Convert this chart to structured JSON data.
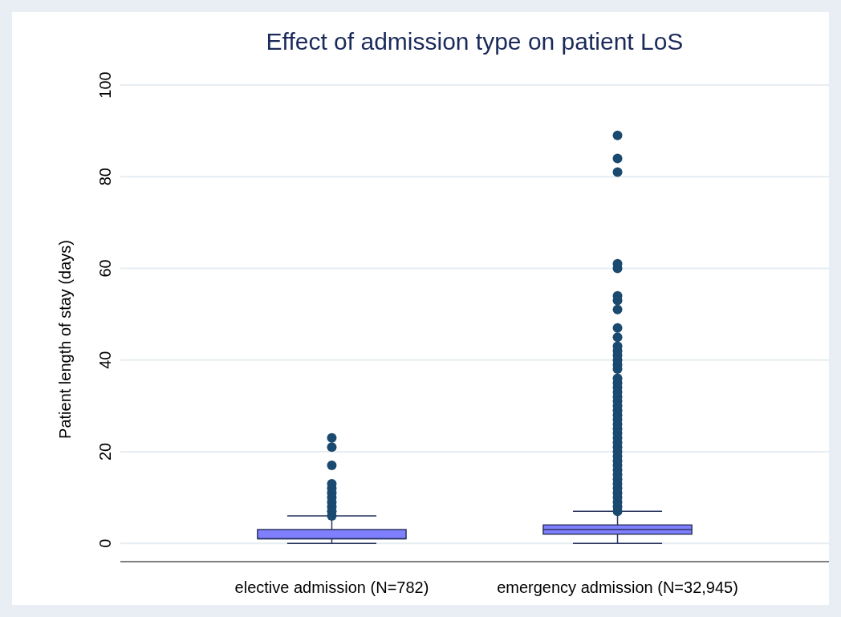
{
  "chart_data": {
    "type": "box",
    "title": "Effect of admission type on patient LoS",
    "ylabel": "Patient length of stay (days)",
    "categories": [
      "elective admission (N=782)",
      "emergency admission (N=32,945)"
    ],
    "ylim": [
      -4,
      100
    ],
    "yticks": [
      0,
      20,
      40,
      60,
      80,
      100
    ],
    "grid": "y",
    "series": [
      {
        "color": "#8080ff",
        "boxes": [
          {
            "low": 0,
            "q1": 1,
            "median": 1,
            "q3": 3,
            "high": 6,
            "outliers": [
              6,
              7,
              8,
              9,
              10,
              11,
              12,
              13,
              17,
              21,
              23
            ]
          },
          {
            "low": 0,
            "q1": 2,
            "median": 3,
            "q3": 4,
            "high": 7,
            "outliers": [
              7,
              8,
              9,
              10,
              11,
              12,
              13,
              14,
              15,
              16,
              17,
              18,
              19,
              20,
              21,
              22,
              23,
              24,
              25,
              26,
              27,
              28,
              29,
              30,
              31,
              32,
              33,
              34,
              35,
              36,
              38,
              39,
              40,
              41,
              42,
              43,
              45,
              47,
              51,
              53,
              54,
              60,
              61,
              81,
              84,
              89
            ]
          }
        ]
      }
    ]
  }
}
